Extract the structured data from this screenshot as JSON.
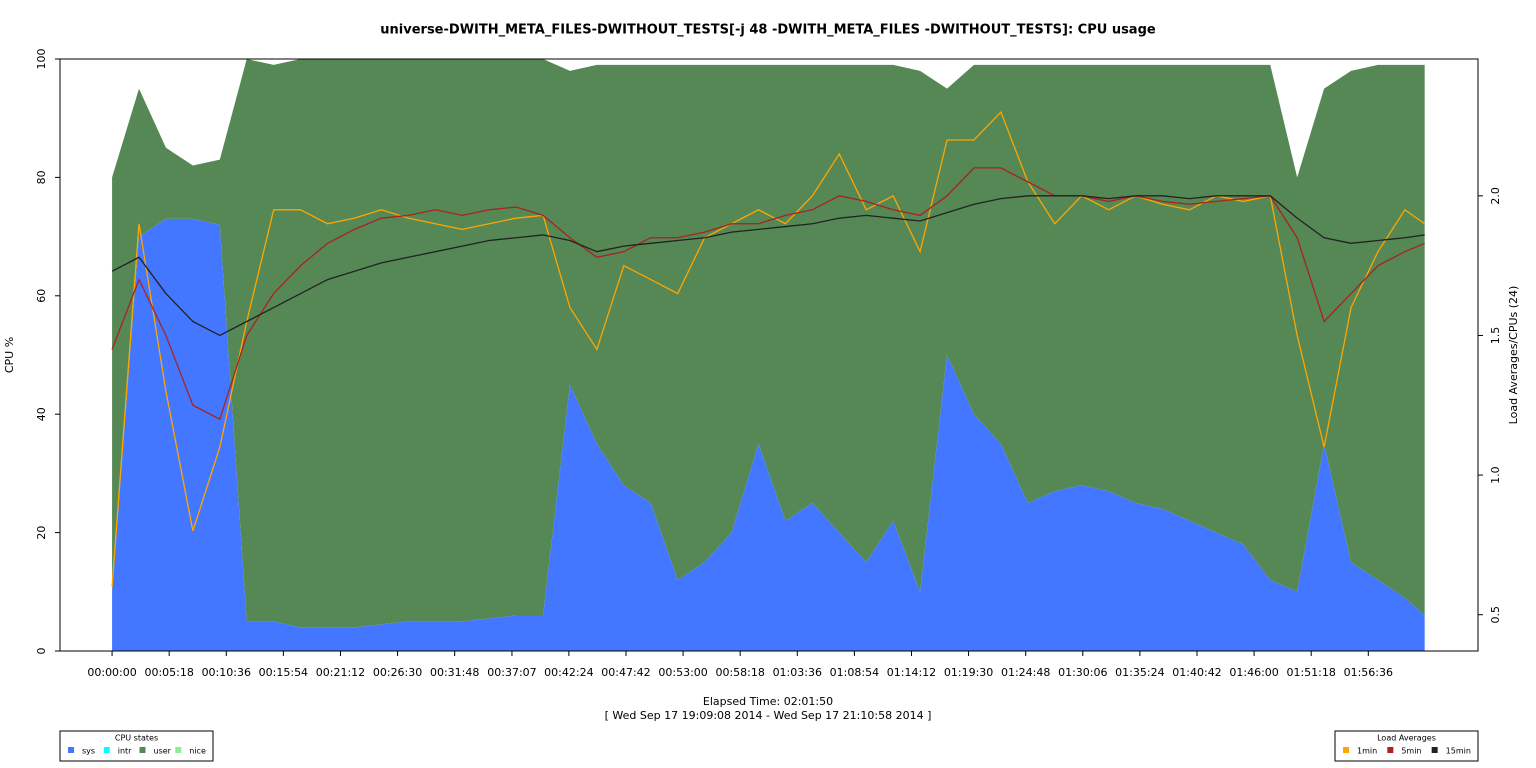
{
  "chart_data": {
    "type": "stacked-area",
    "title": "universe-DWITH_META_FILES-DWITHOUT_TESTS[-j 48 -DWITH_META_FILES -DWITHOUT_TESTS]: CPU usage",
    "xlabel": "Elapsed Time: 02:01:50",
    "subtitle": "[ Wed Sep 17 19:09:08 2014 - Wed Sep 17 21:10:58 2014 ]",
    "ylabel": "CPU %",
    "y2label": "Load Averages/CPUs (24)",
    "x": [
      0,
      150,
      300,
      450,
      600,
      750,
      900,
      1050,
      1200,
      1350,
      1500,
      1650,
      1800,
      1950,
      2100,
      2250,
      2400,
      2550,
      2700,
      2850,
      3000,
      3150,
      3300,
      3450,
      3600,
      3750,
      3900,
      4050,
      4200,
      4350,
      4500,
      4650,
      4800,
      4950,
      5100,
      5250,
      5400,
      5550,
      5700,
      5850,
      6000,
      6150,
      6300,
      6450,
      6600,
      6750,
      6900,
      7050,
      7200,
      7310
    ],
    "series": [
      {
        "name": "sys",
        "color": "#4477ff",
        "values": [
          10,
          70,
          73,
          73,
          72,
          5,
          5,
          4,
          4,
          4,
          4.5,
          5,
          5,
          5,
          5.5,
          6,
          6,
          45,
          35,
          28,
          25,
          12,
          15,
          20,
          35,
          22,
          25,
          20,
          15,
          22,
          10,
          50,
          40,
          35,
          25,
          27,
          28,
          27,
          25,
          24,
          22,
          20,
          18,
          12,
          10,
          35,
          15,
          12,
          9,
          6
        ]
      },
      {
        "name": "user",
        "color": "#558855",
        "values": [
          70,
          25,
          12,
          9,
          11,
          95,
          94,
          96,
          96,
          96,
          95.5,
          95,
          95,
          95,
          94.5,
          94,
          94,
          53,
          64,
          71,
          74,
          87,
          84,
          79,
          64,
          77,
          74,
          79,
          84,
          77,
          88,
          45,
          59,
          64,
          74,
          72,
          71,
          72,
          74,
          75,
          77,
          79,
          81,
          87,
          70,
          60,
          83,
          87,
          90,
          93
        ]
      },
      {
        "name": "1min",
        "color": "#ffa500",
        "axis": "y2",
        "values": [
          0.6,
          1.9,
          1.3,
          0.8,
          1.1,
          1.55,
          1.95,
          1.95,
          1.9,
          1.92,
          1.95,
          1.92,
          1.9,
          1.88,
          1.9,
          1.92,
          1.93,
          1.6,
          1.45,
          1.75,
          1.7,
          1.65,
          1.85,
          1.9,
          1.95,
          1.9,
          2.0,
          2.15,
          1.95,
          2.0,
          1.8,
          2.2,
          2.2,
          2.3,
          2.05,
          1.9,
          2.0,
          1.95,
          2.0,
          1.97,
          1.95,
          2.0,
          1.98,
          2.0,
          1.5,
          1.1,
          1.6,
          1.8,
          1.95,
          1.9
        ]
      },
      {
        "name": "5min",
        "color": "#aa2222",
        "axis": "y2",
        "values": [
          1.45,
          1.7,
          1.5,
          1.25,
          1.2,
          1.5,
          1.65,
          1.75,
          1.83,
          1.88,
          1.92,
          1.93,
          1.95,
          1.93,
          1.95,
          1.96,
          1.93,
          1.85,
          1.78,
          1.8,
          1.85,
          1.85,
          1.87,
          1.9,
          1.9,
          1.93,
          1.95,
          2.0,
          1.98,
          1.95,
          1.93,
          2.0,
          2.1,
          2.1,
          2.05,
          2.0,
          2.0,
          1.98,
          2.0,
          1.98,
          1.97,
          1.98,
          1.99,
          2.0,
          1.85,
          1.55,
          1.65,
          1.75,
          1.8,
          1.83
        ]
      },
      {
        "name": "15min",
        "color": "#222222",
        "axis": "y2",
        "values": [
          1.73,
          1.78,
          1.65,
          1.55,
          1.5,
          1.55,
          1.6,
          1.65,
          1.7,
          1.73,
          1.76,
          1.78,
          1.8,
          1.82,
          1.84,
          1.85,
          1.86,
          1.84,
          1.8,
          1.82,
          1.83,
          1.84,
          1.85,
          1.87,
          1.88,
          1.89,
          1.9,
          1.92,
          1.93,
          1.92,
          1.91,
          1.94,
          1.97,
          1.99,
          2.0,
          2.0,
          2.0,
          1.99,
          2.0,
          2.0,
          1.99,
          2.0,
          2.0,
          2.0,
          1.92,
          1.85,
          1.83,
          1.84,
          1.85,
          1.86
        ]
      }
    ],
    "legend_extra": [
      {
        "name": "intr",
        "color": "#00ffff"
      },
      {
        "name": "nice",
        "color": "#90ee90"
      }
    ],
    "legend_titles": [
      "CPU states",
      "Load Averages"
    ],
    "xlim": [
      -290,
      7607
    ],
    "xticks": [
      {
        "value": 0,
        "label": "00:00:00"
      },
      {
        "value": 318,
        "label": "00:05:18"
      },
      {
        "value": 636,
        "label": "00:10:36"
      },
      {
        "value": 954,
        "label": "00:15:54"
      },
      {
        "value": 1272,
        "label": "00:21:12"
      },
      {
        "value": 1590,
        "label": "00:26:30"
      },
      {
        "value": 1908,
        "label": "00:31:48"
      },
      {
        "value": 2227,
        "label": "00:37:07"
      },
      {
        "value": 2544,
        "label": "00:42:24"
      },
      {
        "value": 2862,
        "label": "00:47:42"
      },
      {
        "value": 3180,
        "label": "00:53:00"
      },
      {
        "value": 3498,
        "label": "00:58:18"
      },
      {
        "value": 3816,
        "label": "01:03:36"
      },
      {
        "value": 4134,
        "label": "01:08:54"
      },
      {
        "value": 4452,
        "label": "01:14:12"
      },
      {
        "value": 4770,
        "label": "01:19:30"
      },
      {
        "value": 5088,
        "label": "01:24:48"
      },
      {
        "value": 5406,
        "label": "01:30:06"
      },
      {
        "value": 5724,
        "label": "01:35:24"
      },
      {
        "value": 6042,
        "label": "01:40:42"
      },
      {
        "value": 6360,
        "label": "01:46:00"
      },
      {
        "value": 6678,
        "label": "01:51:18"
      },
      {
        "value": 6996,
        "label": "01:56:36"
      }
    ],
    "ylim": [
      0,
      100
    ],
    "yticks": [
      0,
      20,
      40,
      60,
      80,
      100
    ],
    "y2lim": [
      0.37,
      2.49
    ],
    "y2ticks": [
      0.5,
      {
        "value": 1.0,
        "label": "1.0"
      },
      1.5,
      {
        "value": 2.0,
        "label": "2.0"
      }
    ]
  }
}
